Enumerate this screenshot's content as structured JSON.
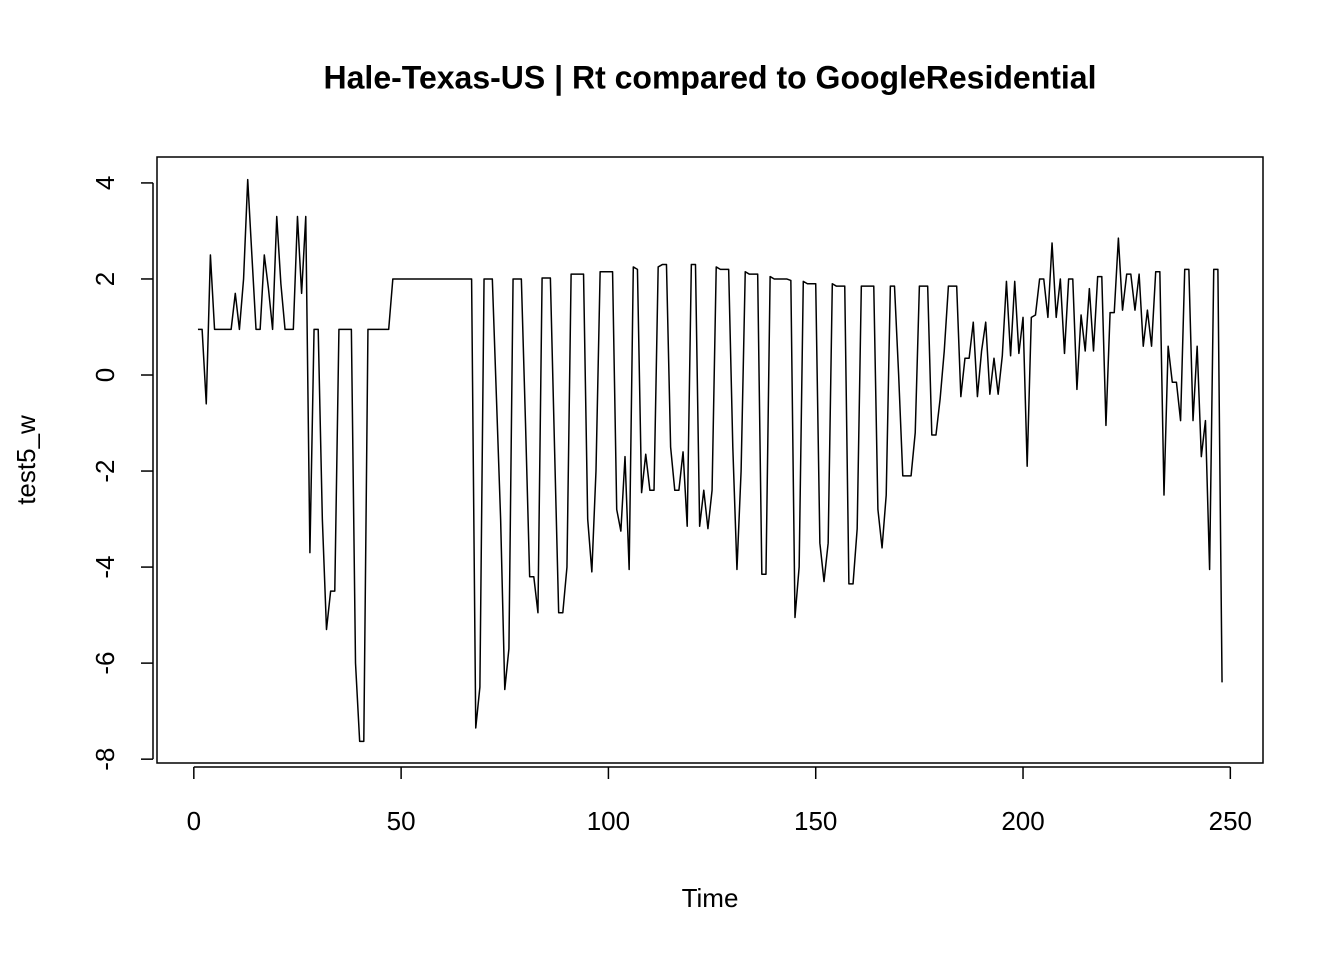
{
  "chart_data": {
    "type": "line",
    "title": "Hale-Texas-US | Rt compared to GoogleResidential",
    "x_label": "Time",
    "y_label": "test5_w",
    "x": [
      1,
      2,
      3,
      4,
      5,
      6,
      7,
      8,
      9,
      10,
      11,
      12,
      13,
      14,
      15,
      16,
      17,
      18,
      19,
      20,
      21,
      22,
      23,
      24,
      25,
      26,
      27,
      28,
      29,
      30,
      31,
      32,
      33,
      34,
      35,
      36,
      37,
      38,
      39,
      40,
      41,
      42,
      43,
      44,
      45,
      46,
      47,
      48,
      49,
      50,
      51,
      52,
      53,
      54,
      55,
      56,
      57,
      58,
      59,
      60,
      61,
      62,
      63,
      64,
      65,
      66,
      67,
      68,
      69,
      70,
      71,
      72,
      73,
      74,
      75,
      76,
      77,
      78,
      79,
      80,
      81,
      82,
      83,
      84,
      85,
      86,
      87,
      88,
      89,
      90,
      91,
      92,
      93,
      94,
      95,
      96,
      97,
      98,
      99,
      100,
      101,
      102,
      103,
      104,
      105,
      106,
      107,
      108,
      109,
      110,
      111,
      112,
      113,
      114,
      115,
      116,
      117,
      118,
      119,
      120,
      121,
      122,
      123,
      124,
      125,
      126,
      127,
      128,
      129,
      130,
      131,
      132,
      133,
      134,
      135,
      136,
      137,
      138,
      139,
      140,
      141,
      142,
      143,
      144,
      145,
      146,
      147,
      148,
      149,
      150,
      151,
      152,
      153,
      154,
      155,
      156,
      157,
      158,
      159,
      160,
      161,
      162,
      163,
      164,
      165,
      166,
      167,
      168,
      169,
      170,
      171,
      172,
      173,
      174,
      175,
      176,
      177,
      178,
      179,
      180,
      181,
      182,
      183,
      184,
      185,
      186,
      187,
      188,
      189,
      190,
      191,
      192,
      193,
      194,
      195,
      196,
      197,
      198,
      199,
      200,
      201,
      202,
      203,
      204,
      205,
      206,
      207,
      208,
      209,
      210,
      211,
      212,
      213,
      214,
      215,
      216,
      217,
      218,
      219,
      220,
      221,
      222,
      223,
      224,
      225,
      226,
      227,
      228,
      229,
      230,
      231,
      232,
      233,
      234,
      235,
      236,
      237,
      238,
      239,
      240,
      241,
      242,
      243,
      244,
      245,
      246,
      247,
      248
    ],
    "values": [
      0.95,
      0.95,
      -0.6,
      2.5,
      0.95,
      0.95,
      0.95,
      0.95,
      0.95,
      1.7,
      0.95,
      2.0,
      4.07,
      2.5,
      0.95,
      0.95,
      2.5,
      1.8,
      0.95,
      3.3,
      1.9,
      0.95,
      0.95,
      0.95,
      3.3,
      1.7,
      3.3,
      -3.7,
      0.95,
      0.95,
      -3.0,
      -5.3,
      -4.5,
      -4.5,
      0.95,
      0.95,
      0.95,
      0.95,
      -6.0,
      -7.63,
      -7.63,
      0.95,
      0.95,
      0.95,
      0.95,
      0.95,
      0.95,
      2.0,
      2.0,
      2.0,
      2.0,
      2.0,
      2.0,
      2.0,
      2.0,
      2.0,
      2.0,
      2.0,
      2.0,
      2.0,
      2.0,
      2.0,
      2.0,
      2.0,
      2.0,
      2.0,
      2.0,
      -7.35,
      -6.5,
      2.0,
      2.0,
      2.0,
      -0.5,
      -3.0,
      -6.55,
      -5.7,
      2.0,
      2.0,
      2.0,
      -1.0,
      -4.2,
      -4.2,
      -4.95,
      2.02,
      2.02,
      2.02,
      -1.5,
      -4.95,
      -4.95,
      -4.0,
      2.1,
      2.1,
      2.1,
      2.1,
      -3.0,
      -4.1,
      -2.0,
      2.15,
      2.15,
      2.15,
      2.15,
      -2.8,
      -3.25,
      -1.7,
      -4.05,
      2.25,
      2.2,
      -2.45,
      -1.65,
      -2.4,
      -2.4,
      2.25,
      2.3,
      2.3,
      -1.5,
      -2.4,
      -2.4,
      -1.6,
      -3.15,
      2.3,
      2.3,
      -3.15,
      -2.4,
      -3.2,
      -2.4,
      2.25,
      2.2,
      2.2,
      2.2,
      -1.5,
      -4.05,
      -2.0,
      2.15,
      2.1,
      2.1,
      2.1,
      -4.15,
      -4.15,
      2.05,
      2.0,
      2.0,
      2.0,
      2.0,
      1.97,
      -5.05,
      -4.0,
      1.95,
      1.9,
      1.9,
      1.9,
      -3.5,
      -4.3,
      -3.5,
      1.9,
      1.85,
      1.85,
      1.85,
      -4.35,
      -4.35,
      -3.2,
      1.85,
      1.85,
      1.85,
      1.85,
      -2.8,
      -3.6,
      -2.5,
      1.85,
      1.85,
      0.0,
      -2.1,
      -2.1,
      -2.1,
      -1.2,
      1.85,
      1.85,
      1.85,
      -1.25,
      -1.25,
      -0.5,
      0.5,
      1.85,
      1.85,
      1.85,
      -0.45,
      0.35,
      0.35,
      1.1,
      -0.45,
      0.5,
      1.1,
      -0.4,
      0.35,
      -0.4,
      0.4,
      1.95,
      0.4,
      1.95,
      0.45,
      1.2,
      -1.9,
      1.2,
      1.25,
      2.0,
      2.0,
      1.2,
      2.75,
      1.2,
      2.0,
      0.45,
      2.0,
      2.0,
      -0.3,
      1.25,
      0.5,
      1.8,
      0.5,
      2.05,
      2.05,
      -1.05,
      1.3,
      1.3,
      2.85,
      1.35,
      2.1,
      2.1,
      1.35,
      2.1,
      0.6,
      1.35,
      0.6,
      2.15,
      2.15,
      -2.5,
      0.6,
      -0.15,
      -0.15,
      -0.95,
      2.2,
      2.2,
      -0.95,
      0.6,
      -1.7,
      -0.95,
      -4.05,
      2.2,
      2.2,
      -6.4
    ],
    "color": "#000000",
    "xlim": [
      -8.88,
      257.88
    ],
    "xticks": [
      0,
      50,
      100,
      150,
      200,
      250
    ],
    "ylim": [
      -8.08,
      4.54
    ],
    "yticks": [
      -8,
      -6,
      -4,
      -2,
      0,
      2,
      4
    ]
  }
}
